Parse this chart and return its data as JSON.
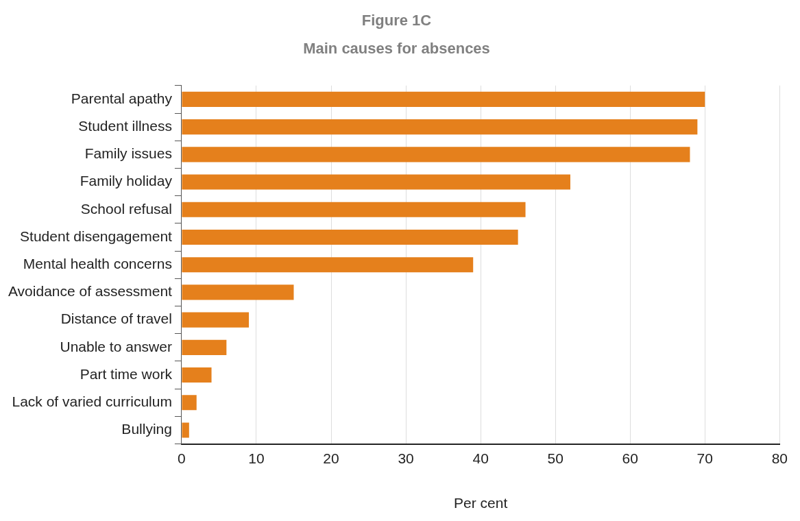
{
  "chart_data": {
    "type": "bar",
    "orientation": "horizontal",
    "title": "Figure 1C",
    "subtitle": "Main causes for absences",
    "xlabel": "Per cent",
    "categories": [
      "Parental apathy",
      "Student illness",
      "Family issues",
      "Family holiday",
      "School refusal",
      "Student disengagement",
      "Mental health concerns",
      "Avoidance of assessment",
      "Distance of travel",
      "Unable to answer",
      "Part time work",
      "Lack of varied curriculum",
      "Bullying"
    ],
    "values": [
      70,
      69,
      68,
      52,
      46,
      45,
      39,
      15,
      9,
      6,
      4,
      2,
      1
    ],
    "color": "#e5801c",
    "xlim": [
      0,
      80
    ],
    "xticks": [
      0,
      10,
      20,
      30,
      40,
      50,
      60,
      70,
      80
    ],
    "grid": "x",
    "legend": false
  }
}
